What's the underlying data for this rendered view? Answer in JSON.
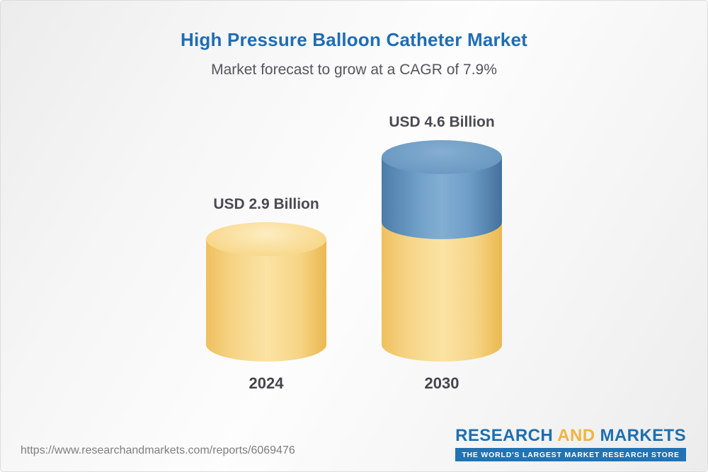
{
  "header": {
    "title": "High Pressure Balloon Catheter Market",
    "subtitle": "Market forecast to grow at a CAGR of 7.9%"
  },
  "chart_data": {
    "type": "bar",
    "title": "High Pressure Balloon Catheter Market",
    "subtitle": "Market forecast to grow at a CAGR of 7.9%",
    "cagr_percent": 7.9,
    "unit": "USD Billion",
    "categories": [
      "2024",
      "2030"
    ],
    "values": [
      2.9,
      4.6
    ],
    "value_labels": [
      "USD 2.9 Billion",
      "USD 4.6 Billion"
    ],
    "legend_position": "none",
    "grid": false,
    "style": {
      "bar_shape": "3d-cylinder",
      "base_color": "#f5cd74",
      "growth_segment_color": "#6f9fc8",
      "note": "2030 cylinder shows the 2024-equivalent base in yellow with a blue growth segment stacked on top"
    }
  },
  "footer": {
    "url": "https://www.researchandmarkets.com/reports/6069476",
    "logo": {
      "word1": "RESEARCH",
      "word2": "AND",
      "word3": "MARKETS",
      "tagline": "THE WORLD'S LARGEST MARKET RESEARCH STORE",
      "brand_blue": "#1d6fb0",
      "brand_gold": "#f0b440"
    }
  }
}
